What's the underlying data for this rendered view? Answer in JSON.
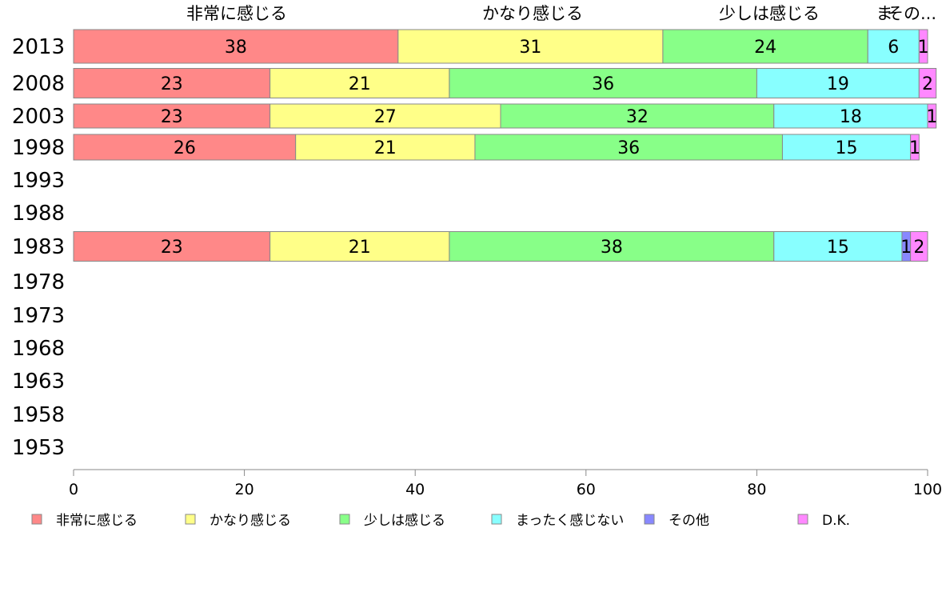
{
  "chart_data": {
    "type": "bar",
    "orientation": "horizontal",
    "stacked": true,
    "categories": [
      "2013",
      "2008",
      "2003",
      "1998",
      "1993",
      "1988",
      "1983",
      "1978",
      "1973",
      "1968",
      "1963",
      "1958",
      "1953"
    ],
    "series": [
      {
        "name": "非常に感じる",
        "color": "#ff8888",
        "values": [
          38,
          23,
          23,
          26,
          null,
          null,
          23,
          null,
          null,
          null,
          null,
          null,
          null
        ]
      },
      {
        "name": "かなり感じる",
        "color": "#ffff88",
        "values": [
          31,
          21,
          27,
          21,
          null,
          null,
          21,
          null,
          null,
          null,
          null,
          null,
          null
        ]
      },
      {
        "name": "少しは感じる",
        "color": "#88ff88",
        "values": [
          24,
          36,
          32,
          36,
          null,
          null,
          38,
          null,
          null,
          null,
          null,
          null,
          null
        ]
      },
      {
        "name": "まったく感じない",
        "color": "#88ffff",
        "values": [
          6,
          19,
          18,
          15,
          null,
          null,
          15,
          null,
          null,
          null,
          null,
          null,
          null
        ]
      },
      {
        "name": "その他",
        "color": "#8888ff",
        "values": [
          null,
          null,
          null,
          null,
          null,
          null,
          1,
          null,
          null,
          null,
          null,
          null,
          null
        ]
      },
      {
        "name": "D.K.",
        "color": "#ff88ff",
        "values": [
          1,
          2,
          1,
          1,
          null,
          null,
          2,
          null,
          null,
          null,
          null,
          null,
          null
        ]
      }
    ],
    "top_labels": [
      "非常に感じる",
      "かなり感じる",
      "少しは感じる",
      "ま",
      "その..."
    ],
    "xlim": [
      0,
      100
    ],
    "xticks": [
      0,
      20,
      40,
      60,
      80,
      100
    ],
    "grid": false,
    "legend_position": "bottom"
  }
}
